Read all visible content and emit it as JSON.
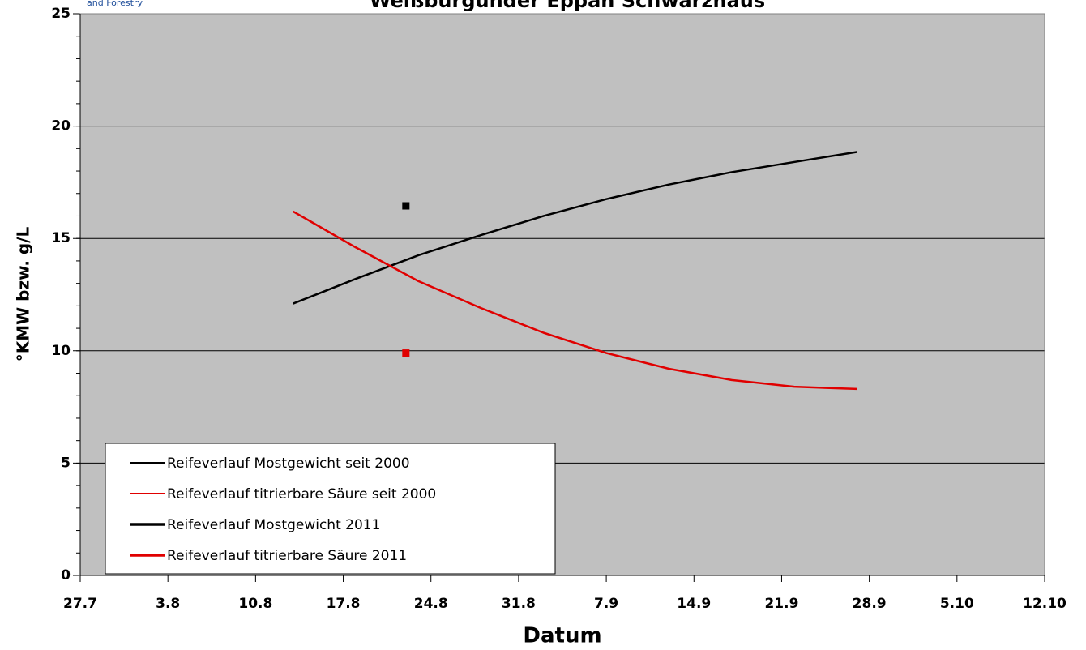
{
  "chart_data": {
    "type": "line",
    "title": "Weißburgunder Eppan Schwarzhaus",
    "logo_text": "and Forestry",
    "x_label": "Datum",
    "y_label": "°KMW bzw. g/L",
    "xlim": [
      208,
      285
    ],
    "xticks": [
      {
        "value": 208,
        "label": "27.7"
      },
      {
        "value": 215,
        "label": "3.8"
      },
      {
        "value": 222,
        "label": "10.8"
      },
      {
        "value": 229,
        "label": "17.8"
      },
      {
        "value": 236,
        "label": "24.8"
      },
      {
        "value": 243,
        "label": "31.8"
      },
      {
        "value": 250,
        "label": "7.9"
      },
      {
        "value": 257,
        "label": "14.9"
      },
      {
        "value": 264,
        "label": "21.9"
      },
      {
        "value": 271,
        "label": "28.9"
      },
      {
        "value": 278,
        "label": "5.10"
      },
      {
        "value": 285,
        "label": "12.10"
      }
    ],
    "ylim": [
      0,
      25
    ],
    "yticks": [
      0,
      5,
      10,
      15,
      20,
      25
    ],
    "grid": true,
    "background": "#c0c0c0",
    "legend": "lower left",
    "series": [
      {
        "name": "Reifeverlauf Mostgewicht seit 2000",
        "color": "#000000",
        "style": "line",
        "x": [
          225,
          230,
          235,
          240,
          245,
          250,
          255,
          260,
          265,
          270
        ],
        "values": [
          12.1,
          13.2,
          14.25,
          15.15,
          16.0,
          16.75,
          17.4,
          17.95,
          18.4,
          18.85
        ]
      },
      {
        "name": "Reifeverlauf titrierbare Säure seit 2000",
        "color": "#e00000",
        "style": "line",
        "x": [
          225,
          230,
          235,
          240,
          245,
          250,
          255,
          260,
          265,
          270
        ],
        "values": [
          16.2,
          14.6,
          13.1,
          11.9,
          10.8,
          9.9,
          9.2,
          8.7,
          8.4,
          8.3
        ]
      },
      {
        "name": "Reifeverlauf Mostgewicht 2011",
        "color": "#000000",
        "style": "marker",
        "x": [
          234
        ],
        "values": [
          16.45
        ]
      },
      {
        "name": "Reifeverlauf titrierbare Säure 2011",
        "color": "#e00000",
        "style": "marker",
        "x": [
          234
        ],
        "values": [
          9.9
        ]
      }
    ]
  }
}
